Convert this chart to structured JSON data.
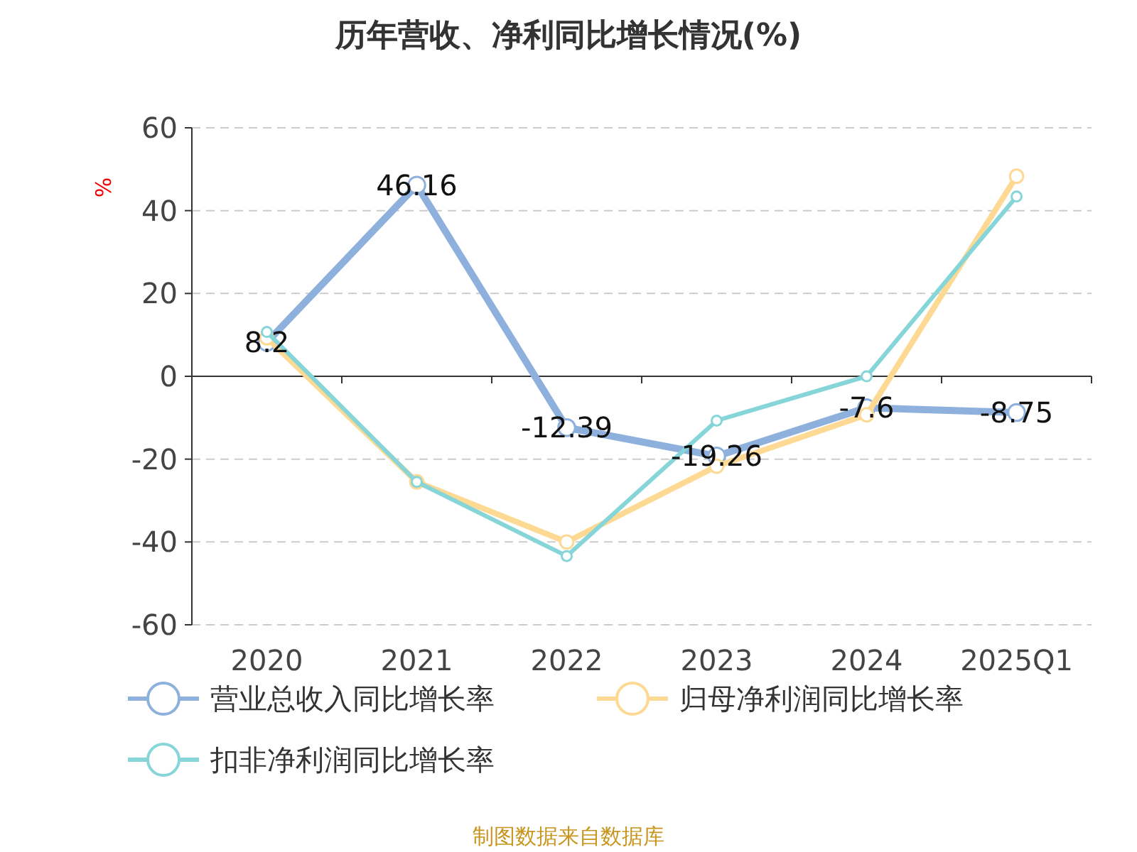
{
  "chart_data": {
    "type": "line",
    "title": "历年营收、净利同比增长情况(%)",
    "ylabel": "%",
    "categories": [
      "2020",
      "2021",
      "2022",
      "2023",
      "2024",
      "2025Q1"
    ],
    "series": [
      {
        "name": "营业总收入同比增长率",
        "color": "#8eb0dc",
        "values": [
          8.2,
          46.16,
          -12.39,
          -19.26,
          -7.6,
          -8.75
        ],
        "value_labels": [
          "8.2",
          "46.16",
          "-12.39",
          "-19.26",
          "-7.6",
          "-8.75"
        ]
      },
      {
        "name": "归母净利润同比增长率",
        "color": "#fdd993",
        "values": [
          9.3,
          -25.5,
          -40,
          -21.7,
          -9.3,
          48.3
        ]
      },
      {
        "name": "扣非净利润同比增长率",
        "color": "#86d5d8",
        "values": [
          10.7,
          -25.5,
          -43.4,
          -10.7,
          0,
          43.4
        ]
      }
    ],
    "ylim": [
      -60,
      60
    ],
    "yticks": [
      -60,
      -40,
      -20,
      0,
      20,
      40,
      60
    ],
    "grid": "y",
    "legend": "bottom",
    "marker": "circle",
    "line_style": "solid",
    "annotations": [
      "制图数据来自数据库"
    ]
  }
}
